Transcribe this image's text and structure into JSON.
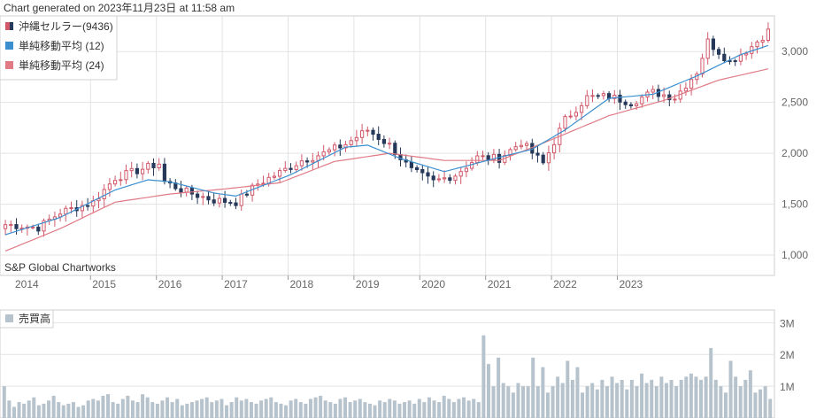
{
  "header": {
    "generated": "Chart generated on 2023年11月23日 at 11:58 am"
  },
  "watermark": "S&P Global Chartworks",
  "colors": {
    "up": "#d2596a",
    "down": "#27395a",
    "sma12": "#3b8fcf",
    "sma24": "#e07b86",
    "volume": "#b7c3cc",
    "grid": "#e3e3e3"
  },
  "chart_data": [
    {
      "type": "candlestick",
      "title": "",
      "legend": [
        "沖縄セルラー(9436)",
        "単純移動平均 (12)",
        "単純移動平均 (24)"
      ],
      "legend_placement": "top-left",
      "ylim": [
        800,
        3350
      ],
      "yticks": [
        1000,
        1500,
        2000,
        2500,
        3000
      ],
      "ytick_labels": [
        "1,000",
        "1,500",
        "2,000",
        "2,500",
        "3,000"
      ],
      "xticks": [
        "2014",
        "2015",
        "2016",
        "2017",
        "2018",
        "2019",
        "2020",
        "2021",
        "2022",
        "2023"
      ],
      "grid": true,
      "series": [
        {
          "name": "沖縄セルラー(9436)",
          "anchors": [
            [
              0,
              1300
            ],
            [
              6,
              1270
            ],
            [
              10,
              1420
            ],
            [
              16,
              1520
            ],
            [
              20,
              1760
            ],
            [
              24,
              1830
            ],
            [
              28,
              1900
            ],
            [
              29,
              1720
            ],
            [
              33,
              1620
            ],
            [
              38,
              1540
            ],
            [
              42,
              1520
            ],
            [
              46,
              1700
            ],
            [
              50,
              1810
            ],
            [
              54,
              1930
            ],
            [
              58,
              2000
            ],
            [
              62,
              2090
            ],
            [
              66,
              2230
            ],
            [
              70,
              2080
            ],
            [
              74,
              1830
            ],
            [
              78,
              1720
            ],
            [
              82,
              1790
            ],
            [
              86,
              1960
            ],
            [
              90,
              1950
            ],
            [
              94,
              2110
            ],
            [
              98,
              1900
            ],
            [
              102,
              2330
            ],
            [
              106,
              2550
            ],
            [
              110,
              2560
            ],
            [
              114,
              2500
            ],
            [
              118,
              2600
            ],
            [
              122,
              2550
            ],
            [
              126,
              2800
            ],
            [
              128,
              3100
            ],
            [
              132,
              2900
            ],
            [
              136,
              3050
            ],
            [
              139,
              3200
            ]
          ]
        },
        {
          "name": "単純移動平均 (12)",
          "anchors": [
            [
              0,
              1200
            ],
            [
              10,
              1370
            ],
            [
              20,
              1640
            ],
            [
              26,
              1740
            ],
            [
              30,
              1720
            ],
            [
              38,
              1610
            ],
            [
              42,
              1580
            ],
            [
              52,
              1790
            ],
            [
              62,
              2060
            ],
            [
              66,
              2080
            ],
            [
              72,
              1950
            ],
            [
              80,
              1820
            ],
            [
              90,
              1960
            ],
            [
              96,
              2040
            ],
            [
              102,
              2230
            ],
            [
              110,
              2540
            ],
            [
              118,
              2580
            ],
            [
              126,
              2760
            ],
            [
              134,
              2970
            ],
            [
              139,
              3060
            ]
          ]
        },
        {
          "name": "単純移動平均 (24)",
          "anchors": [
            [
              0,
              1040
            ],
            [
              10,
              1260
            ],
            [
              20,
              1520
            ],
            [
              30,
              1600
            ],
            [
              40,
              1650
            ],
            [
              50,
              1710
            ],
            [
              60,
              1920
            ],
            [
              70,
              2000
            ],
            [
              80,
              1930
            ],
            [
              90,
              1930
            ],
            [
              98,
              2100
            ],
            [
              110,
              2370
            ],
            [
              120,
              2520
            ],
            [
              130,
              2720
            ],
            [
              139,
              2830
            ]
          ]
        }
      ]
    },
    {
      "type": "bar",
      "title": "",
      "legend": [
        "売買高"
      ],
      "yticks": [
        1000000,
        2000000,
        3000000
      ],
      "ytick_labels": [
        "1M",
        "2M",
        "3M"
      ],
      "ylim": [
        0,
        3400000
      ],
      "values": [
        1000000,
        550000,
        350000,
        500000,
        450000,
        550000,
        650000,
        400000,
        450000,
        550000,
        700000,
        500000,
        400000,
        450000,
        500000,
        350000,
        400000,
        550000,
        600000,
        550000,
        700000,
        750000,
        500000,
        450000,
        600000,
        700000,
        550000,
        500000,
        750000,
        650000,
        500000,
        450000,
        550000,
        650000,
        500000,
        600000,
        400000,
        450000,
        500000,
        550000,
        600000,
        650000,
        500000,
        550000,
        600000,
        400000,
        500000,
        650000,
        550000,
        600000,
        500000,
        450000,
        550000,
        600000,
        650000,
        500000,
        450000,
        400000,
        550000,
        600000,
        500000,
        450000,
        600000,
        650000,
        700000,
        550000,
        500000,
        450000,
        600000,
        650000,
        500000,
        550000,
        600000,
        500000,
        450000,
        400000,
        550000,
        500000,
        600000,
        550000,
        450000,
        500000,
        550000,
        450000,
        600000,
        500000,
        650000,
        550000,
        500000,
        700000,
        600000,
        500000,
        600000,
        650000,
        550000,
        600000,
        500000,
        2600000,
        1700000,
        1000000,
        1900000,
        1100000,
        1000000,
        800000,
        1100000,
        1000000,
        1000000,
        1900000,
        1000000,
        1600000,
        800000,
        1000000,
        1300000,
        1100000,
        1800000,
        1200000,
        1600000,
        800000,
        1000000,
        1100000,
        900000,
        1200000,
        1000000,
        1300000,
        1100000,
        1200000,
        900000,
        1200000,
        1000000,
        1400000,
        1100000,
        1200000,
        1000000,
        1300000,
        1100000,
        1200000,
        1000000,
        1200000,
        1300000,
        1400000,
        1300000,
        1200000,
        1300000,
        2200000,
        1200000,
        1000000,
        800000,
        1800000,
        1300000,
        1000000,
        1200000,
        1500000,
        800000,
        900000,
        1000000,
        600000
      ]
    }
  ]
}
